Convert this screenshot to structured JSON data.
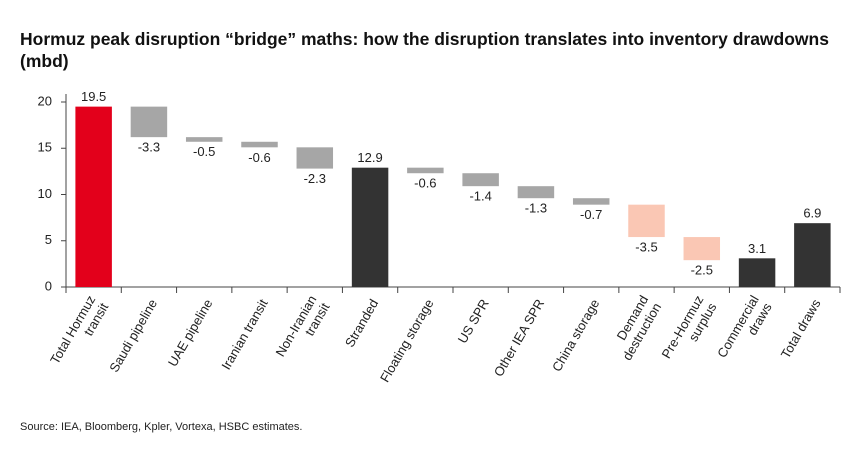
{
  "chart_data": {
    "type": "waterfall",
    "title": "Hormuz peak disruption “bridge” maths: how the disruption translates into inventory drawdowns (mbd)",
    "source": "Source: IEA, Bloomberg, Kpler, Vortexa, HSBC estimates.",
    "categories": [
      "Total Hormuz\ntransit",
      "Saudi pipeline",
      "UAE pipeline",
      "Iranian transit",
      "Non-Iranian\ntransit",
      "Stranded",
      "Floating storage",
      "US SPR",
      "Other IEA SPR",
      "China storage",
      "Demand\ndestruction",
      "Pre-Hormuz\nsurplus",
      "Commercial\ndraws",
      "Total draws"
    ],
    "values": [
      19.5,
      -3.3,
      -0.5,
      -0.6,
      -2.3,
      12.9,
      -0.6,
      -1.4,
      -1.3,
      -0.7,
      -3.5,
      -2.5,
      3.1,
      6.9
    ],
    "measures": [
      "absolute",
      "relative",
      "relative",
      "relative",
      "relative",
      "absolute",
      "relative",
      "relative",
      "relative",
      "relative",
      "relative",
      "relative",
      "absolute",
      "absolute"
    ],
    "colors": [
      "#e3001b",
      "#a6a6a6",
      "#a6a6a6",
      "#a6a6a6",
      "#a6a6a6",
      "#333333",
      "#a6a6a6",
      "#a6a6a6",
      "#a6a6a6",
      "#a6a6a6",
      "#fac7b4",
      "#fac7b4",
      "#333333",
      "#333333"
    ],
    "ylim": [
      0,
      20
    ],
    "yticks": [
      0,
      5,
      10,
      15,
      20
    ],
    "grid": false
  }
}
